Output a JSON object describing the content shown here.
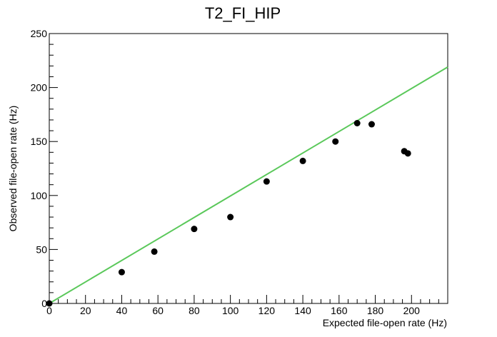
{
  "chart_data": {
    "type": "scatter",
    "title": "T2_FI_HIP",
    "xlabel": "Expected file-open rate (Hz)",
    "ylabel": "Observed file-open rate (Hz)",
    "xlim": [
      0,
      220
    ],
    "ylim": [
      0,
      250
    ],
    "x_ticks": [
      0,
      20,
      40,
      60,
      80,
      100,
      120,
      140,
      160,
      180,
      200
    ],
    "y_ticks": [
      0,
      50,
      100,
      150,
      200,
      250
    ],
    "grid": false,
    "series": [
      {
        "type": "scatter",
        "color": "#000000",
        "points": [
          {
            "x": 0,
            "y": 0
          },
          {
            "x": 40,
            "y": 29
          },
          {
            "x": 58,
            "y": 48
          },
          {
            "x": 80,
            "y": 69
          },
          {
            "x": 100,
            "y": 80
          },
          {
            "x": 120,
            "y": 113
          },
          {
            "x": 140,
            "y": 132
          },
          {
            "x": 158,
            "y": 150
          },
          {
            "x": 170,
            "y": 167
          },
          {
            "x": 178,
            "y": 166
          },
          {
            "x": 196,
            "y": 141
          },
          {
            "x": 198,
            "y": 139
          }
        ]
      },
      {
        "type": "line",
        "color": "#5ac85a",
        "points": [
          {
            "x": 0,
            "y": 0
          },
          {
            "x": 220,
            "y": 219
          }
        ]
      }
    ]
  }
}
